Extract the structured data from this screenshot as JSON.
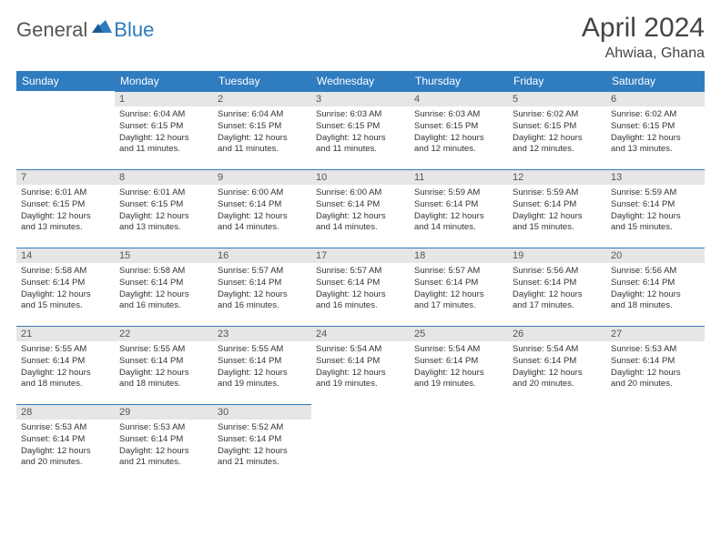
{
  "logo": {
    "general": "General",
    "blue": "Blue"
  },
  "header": {
    "title": "April 2024",
    "location": "Ahwiaa, Ghana"
  },
  "columns": [
    "Sunday",
    "Monday",
    "Tuesday",
    "Wednesday",
    "Thursday",
    "Friday",
    "Saturday"
  ],
  "colors": {
    "header_bg": "#2f7cc0",
    "header_fg": "#ffffff",
    "daynum_bg": "#e6e6e6",
    "daynum_border": "#2f7cc0",
    "text": "#333333"
  },
  "weeks": [
    [
      null,
      {
        "n": "1",
        "sr": "Sunrise: 6:04 AM",
        "ss": "Sunset: 6:15 PM",
        "d1": "Daylight: 12 hours",
        "d2": "and 11 minutes."
      },
      {
        "n": "2",
        "sr": "Sunrise: 6:04 AM",
        "ss": "Sunset: 6:15 PM",
        "d1": "Daylight: 12 hours",
        "d2": "and 11 minutes."
      },
      {
        "n": "3",
        "sr": "Sunrise: 6:03 AM",
        "ss": "Sunset: 6:15 PM",
        "d1": "Daylight: 12 hours",
        "d2": "and 11 minutes."
      },
      {
        "n": "4",
        "sr": "Sunrise: 6:03 AM",
        "ss": "Sunset: 6:15 PM",
        "d1": "Daylight: 12 hours",
        "d2": "and 12 minutes."
      },
      {
        "n": "5",
        "sr": "Sunrise: 6:02 AM",
        "ss": "Sunset: 6:15 PM",
        "d1": "Daylight: 12 hours",
        "d2": "and 12 minutes."
      },
      {
        "n": "6",
        "sr": "Sunrise: 6:02 AM",
        "ss": "Sunset: 6:15 PM",
        "d1": "Daylight: 12 hours",
        "d2": "and 13 minutes."
      }
    ],
    [
      {
        "n": "7",
        "sr": "Sunrise: 6:01 AM",
        "ss": "Sunset: 6:15 PM",
        "d1": "Daylight: 12 hours",
        "d2": "and 13 minutes."
      },
      {
        "n": "8",
        "sr": "Sunrise: 6:01 AM",
        "ss": "Sunset: 6:15 PM",
        "d1": "Daylight: 12 hours",
        "d2": "and 13 minutes."
      },
      {
        "n": "9",
        "sr": "Sunrise: 6:00 AM",
        "ss": "Sunset: 6:14 PM",
        "d1": "Daylight: 12 hours",
        "d2": "and 14 minutes."
      },
      {
        "n": "10",
        "sr": "Sunrise: 6:00 AM",
        "ss": "Sunset: 6:14 PM",
        "d1": "Daylight: 12 hours",
        "d2": "and 14 minutes."
      },
      {
        "n": "11",
        "sr": "Sunrise: 5:59 AM",
        "ss": "Sunset: 6:14 PM",
        "d1": "Daylight: 12 hours",
        "d2": "and 14 minutes."
      },
      {
        "n": "12",
        "sr": "Sunrise: 5:59 AM",
        "ss": "Sunset: 6:14 PM",
        "d1": "Daylight: 12 hours",
        "d2": "and 15 minutes."
      },
      {
        "n": "13",
        "sr": "Sunrise: 5:59 AM",
        "ss": "Sunset: 6:14 PM",
        "d1": "Daylight: 12 hours",
        "d2": "and 15 minutes."
      }
    ],
    [
      {
        "n": "14",
        "sr": "Sunrise: 5:58 AM",
        "ss": "Sunset: 6:14 PM",
        "d1": "Daylight: 12 hours",
        "d2": "and 15 minutes."
      },
      {
        "n": "15",
        "sr": "Sunrise: 5:58 AM",
        "ss": "Sunset: 6:14 PM",
        "d1": "Daylight: 12 hours",
        "d2": "and 16 minutes."
      },
      {
        "n": "16",
        "sr": "Sunrise: 5:57 AM",
        "ss": "Sunset: 6:14 PM",
        "d1": "Daylight: 12 hours",
        "d2": "and 16 minutes."
      },
      {
        "n": "17",
        "sr": "Sunrise: 5:57 AM",
        "ss": "Sunset: 6:14 PM",
        "d1": "Daylight: 12 hours",
        "d2": "and 16 minutes."
      },
      {
        "n": "18",
        "sr": "Sunrise: 5:57 AM",
        "ss": "Sunset: 6:14 PM",
        "d1": "Daylight: 12 hours",
        "d2": "and 17 minutes."
      },
      {
        "n": "19",
        "sr": "Sunrise: 5:56 AM",
        "ss": "Sunset: 6:14 PM",
        "d1": "Daylight: 12 hours",
        "d2": "and 17 minutes."
      },
      {
        "n": "20",
        "sr": "Sunrise: 5:56 AM",
        "ss": "Sunset: 6:14 PM",
        "d1": "Daylight: 12 hours",
        "d2": "and 18 minutes."
      }
    ],
    [
      {
        "n": "21",
        "sr": "Sunrise: 5:55 AM",
        "ss": "Sunset: 6:14 PM",
        "d1": "Daylight: 12 hours",
        "d2": "and 18 minutes."
      },
      {
        "n": "22",
        "sr": "Sunrise: 5:55 AM",
        "ss": "Sunset: 6:14 PM",
        "d1": "Daylight: 12 hours",
        "d2": "and 18 minutes."
      },
      {
        "n": "23",
        "sr": "Sunrise: 5:55 AM",
        "ss": "Sunset: 6:14 PM",
        "d1": "Daylight: 12 hours",
        "d2": "and 19 minutes."
      },
      {
        "n": "24",
        "sr": "Sunrise: 5:54 AM",
        "ss": "Sunset: 6:14 PM",
        "d1": "Daylight: 12 hours",
        "d2": "and 19 minutes."
      },
      {
        "n": "25",
        "sr": "Sunrise: 5:54 AM",
        "ss": "Sunset: 6:14 PM",
        "d1": "Daylight: 12 hours",
        "d2": "and 19 minutes."
      },
      {
        "n": "26",
        "sr": "Sunrise: 5:54 AM",
        "ss": "Sunset: 6:14 PM",
        "d1": "Daylight: 12 hours",
        "d2": "and 20 minutes."
      },
      {
        "n": "27",
        "sr": "Sunrise: 5:53 AM",
        "ss": "Sunset: 6:14 PM",
        "d1": "Daylight: 12 hours",
        "d2": "and 20 minutes."
      }
    ],
    [
      {
        "n": "28",
        "sr": "Sunrise: 5:53 AM",
        "ss": "Sunset: 6:14 PM",
        "d1": "Daylight: 12 hours",
        "d2": "and 20 minutes."
      },
      {
        "n": "29",
        "sr": "Sunrise: 5:53 AM",
        "ss": "Sunset: 6:14 PM",
        "d1": "Daylight: 12 hours",
        "d2": "and 21 minutes."
      },
      {
        "n": "30",
        "sr": "Sunrise: 5:52 AM",
        "ss": "Sunset: 6:14 PM",
        "d1": "Daylight: 12 hours",
        "d2": "and 21 minutes."
      },
      null,
      null,
      null,
      null
    ]
  ]
}
